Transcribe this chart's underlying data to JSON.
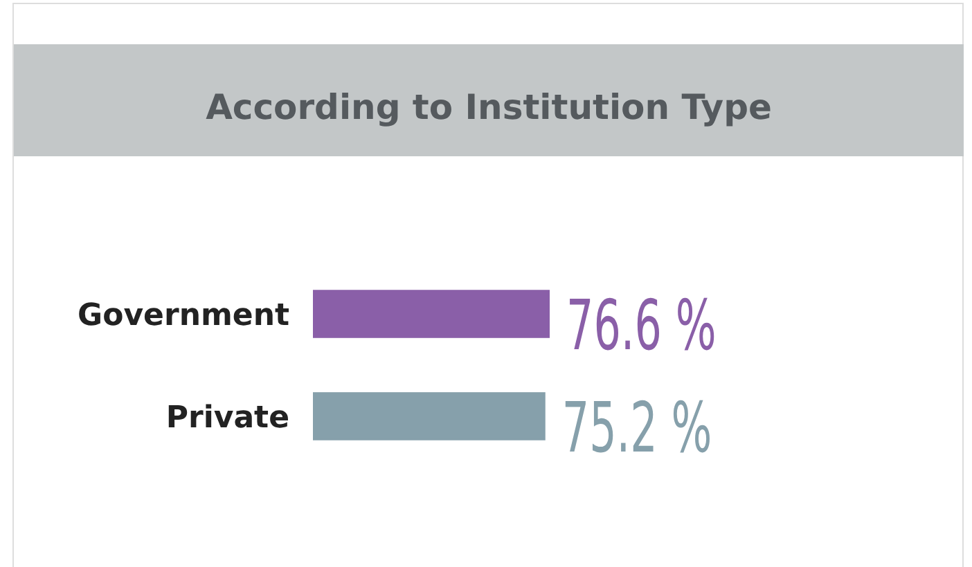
{
  "chart_data": {
    "type": "bar",
    "orientation": "horizontal",
    "title": "According to Institution Type",
    "categories": [
      "Government",
      "Private"
    ],
    "values": [
      76.6,
      75.2
    ],
    "colors": [
      "#8a5fa8",
      "#86a0ab"
    ],
    "value_labels": [
      "76.6 %",
      "75.2 %"
    ],
    "tick_labels": "y"
  }
}
